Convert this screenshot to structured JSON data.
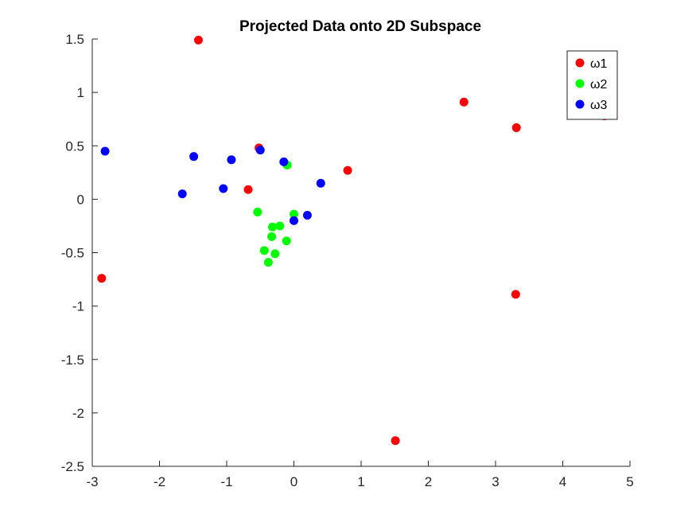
{
  "chart_data": {
    "type": "scatter",
    "title": "Projected Data onto 2D Subspace",
    "xlabel": "",
    "ylabel": "",
    "xlim": [
      -3,
      5
    ],
    "ylim": [
      -2.5,
      1.5
    ],
    "xticks": [
      -3,
      -2,
      -1,
      0,
      1,
      2,
      3,
      4,
      5
    ],
    "yticks": [
      -2.5,
      -2,
      -1.5,
      -1,
      -0.5,
      0,
      0.5,
      1,
      1.5
    ],
    "xtick_labels": [
      "-3",
      "-2",
      "-1",
      "0",
      "1",
      "2",
      "3",
      "4",
      "5"
    ],
    "ytick_labels": [
      "-2.5",
      "-2",
      "-1.5",
      "-1",
      "-0.5",
      "0",
      "0.5",
      "1",
      "1.5"
    ],
    "grid": false,
    "legend_position": "top-right",
    "series": [
      {
        "name": "ω1",
        "color": "#ff0000",
        "points": [
          [
            -1.42,
            1.49
          ],
          [
            -0.52,
            0.48
          ],
          [
            -0.68,
            0.09
          ],
          [
            0.8,
            0.27
          ],
          [
            2.53,
            0.91
          ],
          [
            3.31,
            0.67
          ],
          [
            4.62,
            0.78
          ],
          [
            -2.86,
            -0.74
          ],
          [
            3.3,
            -0.89
          ],
          [
            1.51,
            -2.26
          ]
        ]
      },
      {
        "name": "ω2",
        "color": "#00ff00",
        "points": [
          [
            -0.1,
            0.32
          ],
          [
            -0.54,
            -0.12
          ],
          [
            0.0,
            -0.14
          ],
          [
            -0.32,
            -0.26
          ],
          [
            -0.21,
            -0.25
          ],
          [
            -0.33,
            -0.35
          ],
          [
            -0.11,
            -0.39
          ],
          [
            -0.44,
            -0.48
          ],
          [
            -0.28,
            -0.51
          ],
          [
            -0.38,
            -0.59
          ]
        ]
      },
      {
        "name": "ω3",
        "color": "#0000ff",
        "points": [
          [
            -2.81,
            0.45
          ],
          [
            -1.49,
            0.4
          ],
          [
            -0.93,
            0.37
          ],
          [
            -0.5,
            0.46
          ],
          [
            -0.15,
            0.35
          ],
          [
            -1.66,
            0.05
          ],
          [
            -1.05,
            0.1
          ],
          [
            0.4,
            0.15
          ],
          [
            0.2,
            -0.15
          ],
          [
            0.0,
            -0.2
          ]
        ]
      }
    ]
  }
}
